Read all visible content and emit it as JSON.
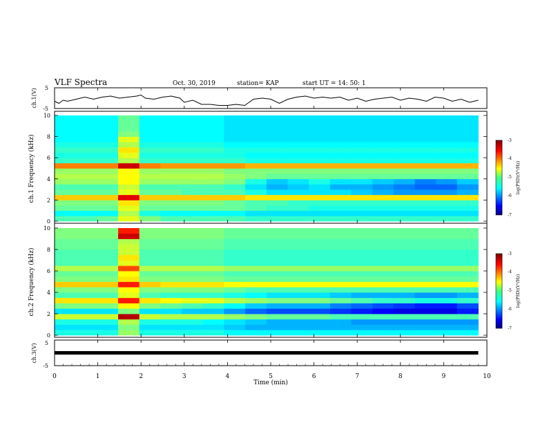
{
  "header": {
    "title": "VLF Spectra",
    "date": "Oct. 30, 2019",
    "station": "station= KAP",
    "start_ut": "start  UT =   14: 50: 1"
  },
  "chart_data": [
    {
      "type": "line",
      "panel": "ch1-waveform",
      "ylabel": "ch.1(V)",
      "ylim": [
        -5,
        5
      ],
      "yticks": [
        "5",
        "-5"
      ],
      "xlim": [
        0,
        10
      ],
      "series": [
        {
          "x": [
            0,
            0.1,
            0.2,
            0.3,
            0.5,
            0.7,
            0.9,
            1.0,
            1.1,
            1.3,
            1.4,
            1.5,
            1.7,
            1.9,
            2.0,
            2.1,
            2.3,
            2.5,
            2.7,
            2.9,
            3.0,
            3.2,
            3.4,
            3.6,
            3.8,
            4.0,
            4.2,
            4.4,
            4.6,
            4.8,
            5.0,
            5.2,
            5.4,
            5.6,
            5.8,
            6.0,
            6.2,
            6.4,
            6.6,
            6.8,
            7.0,
            7.2,
            7.4,
            7.6,
            7.8,
            8.0,
            8.2,
            8.4,
            8.6,
            8.8,
            9.0,
            9.2,
            9.4,
            9.6,
            9.8
          ],
          "values": [
            -1.5,
            -2.5,
            -1.0,
            -1.5,
            -0.5,
            0.5,
            -0.5,
            0.0,
            0.5,
            1.0,
            0.5,
            0.0,
            0.5,
            1.0,
            1.5,
            0.0,
            -0.5,
            0.5,
            1.0,
            0.0,
            -2.0,
            -1.0,
            -3.0,
            -3.0,
            -3.5,
            -3.5,
            -3.0,
            -3.5,
            -0.5,
            0.0,
            -0.5,
            -2.5,
            -0.5,
            0.5,
            1.0,
            0.0,
            0.5,
            0.0,
            0.5,
            -1.0,
            0.0,
            -1.5,
            -0.5,
            0.0,
            0.5,
            -1.0,
            0.0,
            -0.5,
            -1.5,
            0.5,
            0.0,
            -1.5,
            -0.5,
            -2.0,
            -1.0
          ]
        }
      ]
    },
    {
      "type": "heatmap",
      "panel": "ch1-spectrogram",
      "ylabel": "ch.1 Frequency (kHz)",
      "xlim": [
        0,
        10
      ],
      "ylim": [
        0,
        10
      ],
      "yticks": [
        "0",
        "2",
        "4",
        "6",
        "8",
        "10"
      ],
      "colorbar": {
        "label": "log(PSD)(V²/Hz)",
        "range": [
          -7,
          -3
        ],
        "ticks": [
          "-3",
          "-4",
          "-5",
          "-6",
          "-7"
        ]
      },
      "time_bins_min": [
        0,
        0.5,
        1,
        1.5,
        2,
        2.5,
        3,
        3.5,
        4,
        4.5,
        5,
        5.5,
        6,
        6.5,
        7,
        7.5,
        8,
        8.5,
        9,
        9.5
      ],
      "freq_bins_khz": [
        0.25,
        0.75,
        1.25,
        1.75,
        2.25,
        2.75,
        3.25,
        3.75,
        4.25,
        4.75,
        5.25,
        5.75,
        6.25,
        6.75,
        7.25,
        7.75,
        8.25,
        8.75,
        9.25,
        9.75
      ],
      "log_psd": [
        [
          -5.2,
          -5.2,
          -5.1,
          -4.6,
          -5.0,
          -5.2,
          -5.2,
          -5.2,
          -5.2,
          -5.3,
          -5.3,
          -5.3,
          -5.3,
          -5.3,
          -5.3,
          -5.3,
          -5.3,
          -5.3,
          -5.3,
          -5.3
        ],
        [
          -5.5,
          -5.5,
          -5.5,
          -4.8,
          -5.4,
          -5.5,
          -5.5,
          -5.5,
          -5.5,
          -5.6,
          -5.6,
          -5.6,
          -5.6,
          -5.6,
          -5.6,
          -5.6,
          -5.6,
          -5.6,
          -5.6,
          -5.6
        ],
        [
          -5.1,
          -5.1,
          -5.1,
          -4.6,
          -5.1,
          -5.1,
          -5.1,
          -5.1,
          -5.1,
          -5.2,
          -5.3,
          -5.3,
          -5.4,
          -5.4,
          -5.4,
          -5.4,
          -5.4,
          -5.4,
          -5.4,
          -5.4
        ],
        [
          -5.0,
          -5.0,
          -5.0,
          -4.4,
          -5.0,
          -5.0,
          -5.0,
          -5.0,
          -5.1,
          -5.2,
          -5.2,
          -5.3,
          -5.3,
          -5.3,
          -5.3,
          -5.3,
          -5.3,
          -5.3,
          -5.3,
          -5.3
        ],
        [
          -4.3,
          -4.3,
          -4.3,
          -3.4,
          -4.3,
          -4.3,
          -4.3,
          -4.3,
          -4.3,
          -4.4,
          -4.4,
          -4.4,
          -4.4,
          -4.4,
          -4.4,
          -4.4,
          -4.4,
          -4.4,
          -4.4,
          -4.4
        ],
        [
          -5.1,
          -5.1,
          -5.1,
          -4.6,
          -5.1,
          -5.1,
          -5.2,
          -5.2,
          -5.2,
          -5.4,
          -5.6,
          -5.6,
          -5.6,
          -5.6,
          -5.7,
          -5.8,
          -5.9,
          -5.9,
          -5.9,
          -5.8
        ],
        [
          -5.2,
          -5.2,
          -5.2,
          -4.7,
          -5.2,
          -5.2,
          -5.2,
          -5.2,
          -5.3,
          -5.6,
          -5.8,
          -5.7,
          -5.6,
          -5.8,
          -5.8,
          -5.9,
          -6.0,
          -6.1,
          -6.1,
          -5.9
        ],
        [
          -4.9,
          -4.9,
          -4.9,
          -4.5,
          -4.9,
          -4.9,
          -4.9,
          -4.9,
          -5.0,
          -5.4,
          -5.7,
          -5.6,
          -5.4,
          -5.6,
          -5.6,
          -5.7,
          -5.8,
          -6.0,
          -5.9,
          -5.7
        ],
        [
          -4.8,
          -4.8,
          -4.8,
          -4.5,
          -4.8,
          -4.8,
          -4.8,
          -4.8,
          -4.9,
          -5.0,
          -5.1,
          -5.1,
          -5.1,
          -5.1,
          -5.1,
          -5.1,
          -5.1,
          -5.1,
          -5.1,
          -5.1
        ],
        [
          -4.9,
          -4.9,
          -4.9,
          -4.5,
          -4.9,
          -4.9,
          -4.9,
          -4.9,
          -5.0,
          -5.0,
          -5.0,
          -5.0,
          -5.0,
          -5.0,
          -5.0,
          -5.0,
          -5.0,
          -5.0,
          -5.0,
          -5.0
        ],
        [
          -4.0,
          -4.0,
          -4.0,
          -3.3,
          -4.0,
          -4.1,
          -4.1,
          -4.1,
          -4.1,
          -4.2,
          -4.2,
          -4.2,
          -4.2,
          -4.2,
          -4.2,
          -4.2,
          -4.2,
          -4.2,
          -4.2,
          -4.2
        ],
        [
          -5.3,
          -5.3,
          -5.3,
          -4.8,
          -5.3,
          -5.3,
          -5.3,
          -5.3,
          -5.3,
          -5.4,
          -5.4,
          -5.4,
          -5.4,
          -5.4,
          -5.4,
          -5.4,
          -5.4,
          -5.4,
          -5.4,
          -5.4
        ],
        [
          -5.4,
          -5.4,
          -5.4,
          -4.6,
          -5.4,
          -5.4,
          -5.4,
          -5.4,
          -5.4,
          -5.5,
          -5.5,
          -5.5,
          -5.5,
          -5.5,
          -5.5,
          -5.5,
          -5.5,
          -5.5,
          -5.5,
          -5.5
        ],
        [
          -5.3,
          -5.3,
          -5.3,
          -4.4,
          -5.3,
          -5.3,
          -5.3,
          -5.3,
          -5.4,
          -5.4,
          -5.4,
          -5.4,
          -5.4,
          -5.4,
          -5.4,
          -5.4,
          -5.4,
          -5.4,
          -5.4,
          -5.4
        ],
        [
          -5.4,
          -5.4,
          -5.4,
          -4.8,
          -5.4,
          -5.4,
          -5.4,
          -5.4,
          -5.5,
          -5.5,
          -5.5,
          -5.5,
          -5.5,
          -5.5,
          -5.5,
          -5.5,
          -5.5,
          -5.5,
          -5.5,
          -5.5
        ],
        [
          -5.5,
          -5.5,
          -5.5,
          -4.6,
          -5.5,
          -5.5,
          -5.5,
          -5.5,
          -5.6,
          -5.6,
          -5.6,
          -5.6,
          -5.6,
          -5.6,
          -5.6,
          -5.6,
          -5.6,
          -5.6,
          -5.6,
          -5.6
        ],
        [
          -5.5,
          -5.5,
          -5.5,
          -5.0,
          -5.5,
          -5.5,
          -5.5,
          -5.5,
          -5.6,
          -5.6,
          -5.6,
          -5.6,
          -5.6,
          -5.6,
          -5.6,
          -5.6,
          -5.6,
          -5.6,
          -5.6,
          -5.6
        ],
        [
          -5.5,
          -5.5,
          -5.5,
          -5.1,
          -5.5,
          -5.5,
          -5.5,
          -5.5,
          -5.6,
          -5.6,
          -5.6,
          -5.6,
          -5.6,
          -5.6,
          -5.6,
          -5.6,
          -5.6,
          -5.6,
          -5.6,
          -5.6
        ],
        [
          -5.5,
          -5.5,
          -5.5,
          -5.1,
          -5.5,
          -5.5,
          -5.5,
          -5.5,
          -5.6,
          -5.6,
          -5.6,
          -5.6,
          -5.6,
          -5.6,
          -5.6,
          -5.6,
          -5.6,
          -5.6,
          -5.6,
          -5.6
        ],
        [
          -5.5,
          -5.5,
          -5.5,
          -5.1,
          -5.5,
          -5.5,
          -5.5,
          -5.5,
          -5.6,
          -5.6,
          -5.6,
          -5.6,
          -5.6,
          -5.6,
          -5.6,
          -5.6,
          -5.6,
          -5.6,
          -5.6,
          -5.6
        ]
      ]
    },
    {
      "type": "heatmap",
      "panel": "ch2-spectrogram",
      "ylabel": "ch.2 Frequency (kHz)",
      "xlim": [
        0,
        10
      ],
      "ylim": [
        0,
        10
      ],
      "yticks": [
        "0",
        "2",
        "4",
        "6",
        "8",
        "10"
      ],
      "colorbar": {
        "label": "log(PSD)(V²/Hz)",
        "range": [
          -7,
          -3
        ],
        "ticks": [
          "-3",
          "-4",
          "-5",
          "-6",
          "-7"
        ]
      },
      "time_bins_min": [
        0,
        0.5,
        1,
        1.5,
        2,
        2.5,
        3,
        3.5,
        4,
        4.5,
        5,
        5.5,
        6,
        6.5,
        7,
        7.5,
        8,
        8.5,
        9,
        9.5
      ],
      "freq_bins_khz": [
        0.25,
        0.75,
        1.25,
        1.75,
        2.25,
        2.75,
        3.25,
        3.75,
        4.25,
        4.75,
        5.25,
        5.75,
        6.25,
        6.75,
        7.25,
        7.75,
        8.25,
        8.75,
        9.25,
        9.75
      ],
      "log_psd": [
        [
          -5.4,
          -5.4,
          -5.4,
          -4.9,
          -5.4,
          -5.4,
          -5.4,
          -5.4,
          -5.5,
          -5.5,
          -5.5,
          -5.5,
          -5.5,
          -5.5,
          -5.5,
          -5.5,
          -5.5,
          -5.5,
          -5.5,
          -5.5
        ],
        [
          -5.6,
          -5.6,
          -5.6,
          -5.0,
          -5.6,
          -5.6,
          -5.6,
          -5.6,
          -5.7,
          -5.8,
          -5.8,
          -5.8,
          -5.8,
          -5.8,
          -5.8,
          -5.8,
          -5.8,
          -5.8,
          -5.8,
          -5.8
        ],
        [
          -5.4,
          -5.4,
          -5.4,
          -4.8,
          -5.4,
          -5.4,
          -5.4,
          -5.5,
          -5.6,
          -5.7,
          -5.8,
          -5.8,
          -5.8,
          -5.8,
          -5.9,
          -5.9,
          -5.9,
          -5.9,
          -5.9,
          -5.9
        ],
        [
          -4.7,
          -4.7,
          -4.7,
          -3.2,
          -4.7,
          -4.8,
          -4.8,
          -4.8,
          -4.9,
          -5.0,
          -5.1,
          -5.1,
          -5.1,
          -5.2,
          -5.2,
          -5.2,
          -5.2,
          -5.2,
          -5.2,
          -5.2
        ],
        [
          -5.6,
          -5.6,
          -5.6,
          -5.0,
          -5.6,
          -5.6,
          -5.7,
          -5.7,
          -5.9,
          -6.1,
          -6.2,
          -6.2,
          -6.2,
          -6.3,
          -6.4,
          -6.5,
          -6.6,
          -6.6,
          -6.6,
          -6.4
        ],
        [
          -5.0,
          -5.0,
          -5.0,
          -4.5,
          -5.0,
          -5.1,
          -5.2,
          -5.3,
          -5.5,
          -5.7,
          -5.8,
          -5.8,
          -5.8,
          -6.0,
          -6.1,
          -6.2,
          -6.3,
          -6.4,
          -6.4,
          -6.2
        ],
        [
          -4.4,
          -4.4,
          -4.4,
          -3.6,
          -4.4,
          -4.5,
          -4.6,
          -4.6,
          -4.8,
          -4.9,
          -5.0,
          -5.0,
          -5.0,
          -5.1,
          -5.2,
          -5.3,
          -5.3,
          -5.4,
          -5.4,
          -5.3
        ],
        [
          -5.2,
          -5.2,
          -5.2,
          -4.6,
          -5.2,
          -5.3,
          -5.3,
          -5.3,
          -5.4,
          -5.5,
          -5.6,
          -5.6,
          -5.6,
          -5.7,
          -5.8,
          -5.8,
          -5.8,
          -5.9,
          -5.9,
          -5.8
        ],
        [
          -5.0,
          -5.0,
          -5.0,
          -4.5,
          -5.0,
          -5.0,
          -5.0,
          -5.0,
          -5.1,
          -5.2,
          -5.2,
          -5.2,
          -5.2,
          -5.2,
          -5.2,
          -5.2,
          -5.2,
          -5.2,
          -5.2,
          -5.2
        ],
        [
          -4.3,
          -4.3,
          -4.3,
          -3.6,
          -4.3,
          -4.4,
          -4.4,
          -4.4,
          -4.5,
          -4.5,
          -4.5,
          -4.5,
          -4.5,
          -4.5,
          -4.5,
          -4.5,
          -4.5,
          -4.5,
          -4.5,
          -4.5
        ],
        [
          -5.0,
          -5.0,
          -5.0,
          -4.4,
          -5.0,
          -5.0,
          -5.0,
          -5.0,
          -5.1,
          -5.1,
          -5.1,
          -5.1,
          -5.1,
          -5.1,
          -5.1,
          -5.1,
          -5.1,
          -5.1,
          -5.1,
          -5.1
        ],
        [
          -5.1,
          -5.1,
          -5.1,
          -4.5,
          -5.1,
          -5.1,
          -5.1,
          -5.1,
          -5.2,
          -5.2,
          -5.2,
          -5.2,
          -5.2,
          -5.2,
          -5.2,
          -5.2,
          -5.2,
          -5.2,
          -5.2,
          -5.2
        ],
        [
          -4.8,
          -4.8,
          -4.8,
          -3.8,
          -4.8,
          -4.8,
          -4.8,
          -4.8,
          -4.9,
          -4.9,
          -4.9,
          -4.9,
          -4.9,
          -4.9,
          -4.9,
          -4.9,
          -4.9,
          -4.9,
          -4.9,
          -4.9
        ],
        [
          -5.2,
          -5.2,
          -5.2,
          -4.6,
          -5.2,
          -5.2,
          -5.2,
          -5.2,
          -5.3,
          -5.3,
          -5.3,
          -5.3,
          -5.3,
          -5.3,
          -5.3,
          -5.3,
          -5.3,
          -5.3,
          -5.3,
          -5.3
        ],
        [
          -5.2,
          -5.2,
          -5.2,
          -4.4,
          -5.2,
          -5.2,
          -5.2,
          -5.2,
          -5.3,
          -5.3,
          -5.3,
          -5.3,
          -5.3,
          -5.3,
          -5.3,
          -5.3,
          -5.3,
          -5.3,
          -5.3,
          -5.3
        ],
        [
          -5.2,
          -5.2,
          -5.2,
          -4.7,
          -5.2,
          -5.2,
          -5.2,
          -5.2,
          -5.3,
          -5.3,
          -5.3,
          -5.3,
          -5.3,
          -5.3,
          -5.3,
          -5.3,
          -5.3,
          -5.3,
          -5.3,
          -5.3
        ],
        [
          -5.1,
          -5.1,
          -5.1,
          -4.7,
          -5.1,
          -5.1,
          -5.1,
          -5.1,
          -5.2,
          -5.2,
          -5.2,
          -5.2,
          -5.2,
          -5.2,
          -5.2,
          -5.2,
          -5.2,
          -5.2,
          -5.2,
          -5.2
        ],
        [
          -5.1,
          -5.1,
          -5.1,
          -4.8,
          -5.1,
          -5.1,
          -5.1,
          -5.1,
          -5.2,
          -5.2,
          -5.2,
          -5.2,
          -5.2,
          -5.2,
          -5.2,
          -5.2,
          -5.2,
          -5.2,
          -5.2,
          -5.2
        ],
        [
          -5.0,
          -5.0,
          -5.0,
          -3.3,
          -5.0,
          -5.0,
          -5.0,
          -5.0,
          -5.1,
          -5.1,
          -5.1,
          -5.1,
          -5.1,
          -5.1,
          -5.1,
          -5.1,
          -5.1,
          -5.1,
          -5.1,
          -5.1
        ],
        [
          -5.0,
          -5.0,
          -5.0,
          -3.6,
          -5.0,
          -5.0,
          -5.0,
          -5.0,
          -5.1,
          -5.1,
          -5.1,
          -5.1,
          -5.1,
          -5.1,
          -5.1,
          -5.1,
          -5.1,
          -5.1,
          -5.1,
          -5.1
        ]
      ]
    },
    {
      "type": "line",
      "panel": "ch3-waveform",
      "ylabel": "ch.3(V)",
      "ylim": [
        -5,
        5
      ],
      "yticks": [
        "5",
        "-5"
      ],
      "xlim": [
        0,
        10
      ],
      "xlabel": "Time  (min)",
      "xticks": [
        "0",
        "1",
        "2",
        "3",
        "4",
        "5",
        "6",
        "7",
        "8",
        "9",
        "10"
      ],
      "series": [
        {
          "x": [
            0,
            9.8
          ],
          "values": [
            0,
            0
          ]
        }
      ]
    }
  ]
}
